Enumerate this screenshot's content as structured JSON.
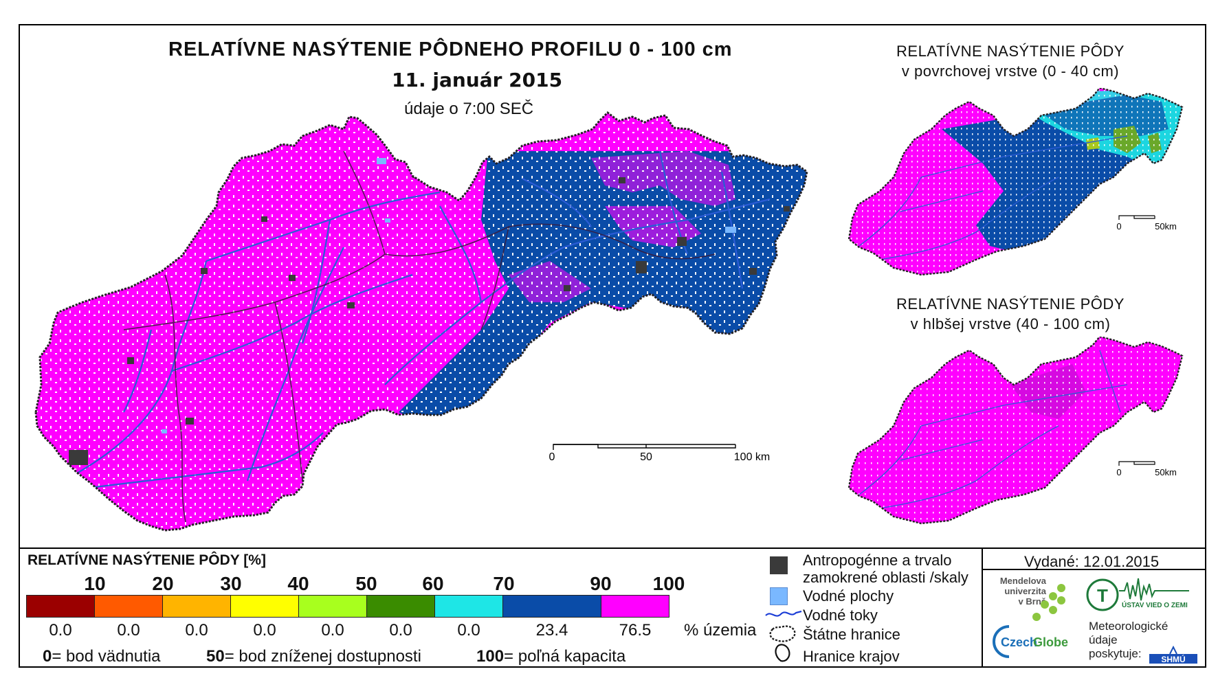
{
  "title": {
    "main": "RELATÍVNE NASÝTENIE PÔDNEHO PROFILU 0 - 100 cm",
    "date": "11. január 2015",
    "time_note": "údaje o 7:00 SEČ"
  },
  "inset_surface": {
    "line1": "RELATÍVNE NASÝTENIE PÔDY",
    "line2": "v povrchovej vrstve (0 - 40 cm)",
    "scale_zero": "0",
    "scale_end": "50km"
  },
  "inset_deep": {
    "line1": "RELATÍVNE NASÝTENIE PÔDY",
    "line2": "v hlbšej vrstve (40 - 100 cm)",
    "scale_zero": "0",
    "scale_end": "50km"
  },
  "main_scale": {
    "zero": "0",
    "mid": "50",
    "end": "100 km"
  },
  "legend": {
    "title": "RELATÍVNE NASÝTENIE PÔDY [%]",
    "ticks": [
      "10",
      "20",
      "30",
      "40",
      "50",
      "60",
      "70",
      "90",
      "100"
    ],
    "classes": [
      {
        "color": "#9b0000",
        "percent": "0.0"
      },
      {
        "color": "#ff5a00",
        "percent": "0.0"
      },
      {
        "color": "#ffb400",
        "percent": "0.0"
      },
      {
        "color": "#ffff00",
        "percent": "0.0"
      },
      {
        "color": "#a8ff1e",
        "percent": "0.0"
      },
      {
        "color": "#3a8c00",
        "percent": "0.0"
      },
      {
        "color": "#1ee6e6",
        "percent": "0.0"
      },
      {
        "color": "#0a4ca8",
        "percent": "23.4"
      },
      {
        "color": "#ff00ff",
        "percent": "76.5"
      }
    ],
    "unit": "% územia",
    "notes": [
      {
        "value": "0",
        "text": "= bod vädnutia"
      },
      {
        "value": "50",
        "text": "= bod zníženej dostupnosti"
      },
      {
        "value": "100",
        "text": "= poľná kapacita"
      }
    ]
  },
  "symbols": {
    "anthropogenic_line1": "Antropogénne a trvalo",
    "anthropogenic_line2": "zamokrené oblasti /skaly",
    "water_areas": "Vodné plochy",
    "rivers": "Vodné toky",
    "state_border": "Štátne hranice",
    "region_border": "Hranice krajov"
  },
  "issued": "Vydané: 12.01.2015",
  "logos": {
    "mendel_line1": "Mendelova",
    "mendel_line2": "univerzita",
    "mendel_line3": "v Brně",
    "czechglobe_a": "Czech",
    "czechglobe_b": "Globe",
    "ustav": "ÚSTAV VIED O ZEMI",
    "meteo_line1": "Meteorologické",
    "meteo_line2": "údaje",
    "meteo_line3": "poskytuje:",
    "shmu": "SHMÚ"
  },
  "colors": {
    "magenta": "#ff00ff",
    "dark_blue": "#0a4ca8",
    "cyan": "#1ee6e6",
    "river": "#2b5cd6",
    "anthropogenic": "#3a3a3a",
    "water": "#7ab8ff"
  }
}
